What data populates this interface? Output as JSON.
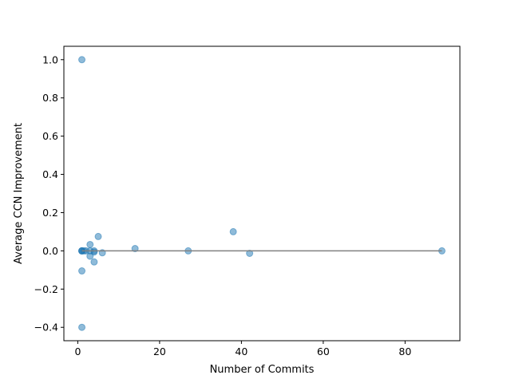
{
  "chart_data": {
    "type": "scatter",
    "title": "",
    "xlabel": "Number of Commits",
    "ylabel": "Average CCN Improvement",
    "xlim": [
      -3.4,
      93.4
    ],
    "ylim": [
      -0.47,
      1.07
    ],
    "xticks": [
      0,
      20,
      40,
      60,
      80
    ],
    "yticks": [
      -0.4,
      -0.2,
      0.0,
      0.2,
      0.4,
      0.6,
      0.8,
      1.0
    ],
    "xtick_labels": [
      "0",
      "20",
      "40",
      "60",
      "80"
    ],
    "ytick_labels": [
      "−0.4",
      "−0.2",
      "0.0",
      "0.2",
      "0.4",
      "0.6",
      "0.8",
      "1.0"
    ],
    "grid": false,
    "marker_color": "#1f77b4",
    "marker_alpha": 0.5,
    "reference_line": {
      "y": 0.0,
      "x_range": [
        1,
        89
      ],
      "color": "#808080"
    },
    "points": [
      {
        "x": 1,
        "y": 1.0
      },
      {
        "x": 1,
        "y": -0.4
      },
      {
        "x": 1,
        "y": -0.105
      },
      {
        "x": 1,
        "y": 0.0
      },
      {
        "x": 1,
        "y": 0.0
      },
      {
        "x": 1,
        "y": 0.0
      },
      {
        "x": 1.5,
        "y": 0.0
      },
      {
        "x": 2,
        "y": 0.0
      },
      {
        "x": 3,
        "y": 0.0
      },
      {
        "x": 3,
        "y": 0.033
      },
      {
        "x": 3,
        "y": -0.028
      },
      {
        "x": 4,
        "y": 0.0
      },
      {
        "x": 4,
        "y": -0.006
      },
      {
        "x": 4,
        "y": -0.058
      },
      {
        "x": 5,
        "y": 0.075
      },
      {
        "x": 6,
        "y": -0.01
      },
      {
        "x": 14,
        "y": 0.012
      },
      {
        "x": 27,
        "y": 0.0
      },
      {
        "x": 38,
        "y": 0.1
      },
      {
        "x": 42,
        "y": -0.013
      },
      {
        "x": 89,
        "y": 0.0
      }
    ]
  }
}
